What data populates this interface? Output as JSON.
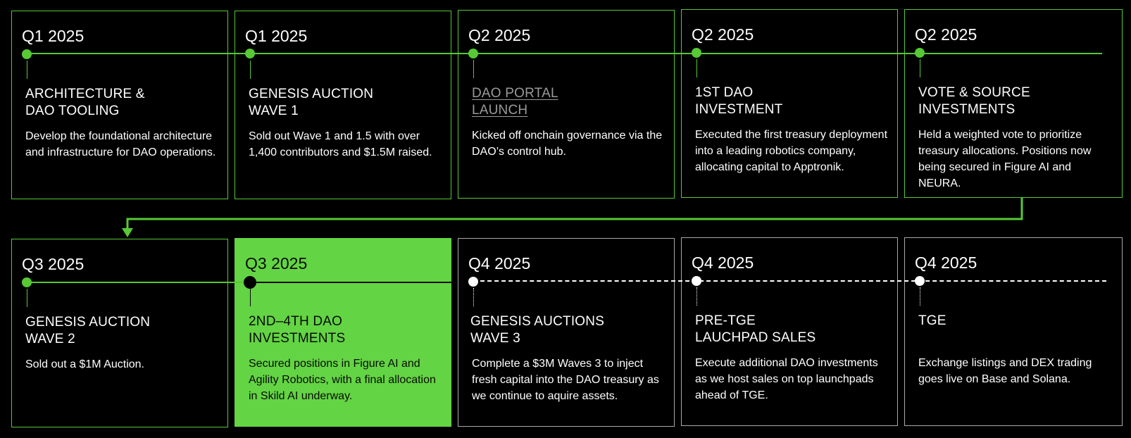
{
  "colors": {
    "accent": "#56c934",
    "filled_card": "#63d443",
    "future_border": "#a9a9a9",
    "background": "#000000"
  },
  "milestones": [
    {
      "quarter": "Q1 2025",
      "title": "ARCHITECTURE &\nDAO TOOLING",
      "description": "Develop the foundational architecture and infrastructure for DAO operations."
    },
    {
      "quarter": "Q1 2025",
      "title": "GENESIS AUCTION\nWAVE 1",
      "description": "Sold out Wave 1 and 1.5 with over 1,400 contributors and $1.5M raised."
    },
    {
      "quarter": "Q2 2025",
      "title": "DAO PORTAL\nLAUNCH",
      "description": "Kicked off onchain governance via the DAO’s control hub."
    },
    {
      "quarter": "Q2 2025",
      "title": "1ST DAO\nINVESTMENT",
      "description": "Executed the first treasury deployment into a leading robotics company, allocating capital to Apptronik."
    },
    {
      "quarter": "Q2 2025",
      "title": "VOTE & SOURCE\nINVESTMENTS",
      "description": "Held a weighted vote to prioritize treasury allocations. Positions now being secured in Figure AI and NEURA."
    },
    {
      "quarter": "Q3 2025",
      "title": "GENESIS AUCTION\nWAVE 2",
      "description": "Sold out a $1M Auction."
    },
    {
      "quarter": "Q3 2025",
      "title": "2ND–4TH DAO\nINVESTMENTS",
      "description": "Secured positions in Figure AI and Agility Robotics, with a final allocation in Skild AI underway."
    },
    {
      "quarter": "Q4 2025",
      "title": "GENESIS AUCTIONS\nWAVE 3",
      "description": "Complete a  $3M Waves 3 to inject fresh capital into the DAO treasury as we continue to aquire assets."
    },
    {
      "quarter": "Q4 2025",
      "title": "PRE-TGE\nLAUCHPAD SALES",
      "description": "Execute additional DAO investments as we host sales on top launchpads ahead of TGE."
    },
    {
      "quarter": "Q4 2025",
      "title": "TGE",
      "description": "Exchange listings and DEX trading goes live on Base and Solana."
    }
  ]
}
